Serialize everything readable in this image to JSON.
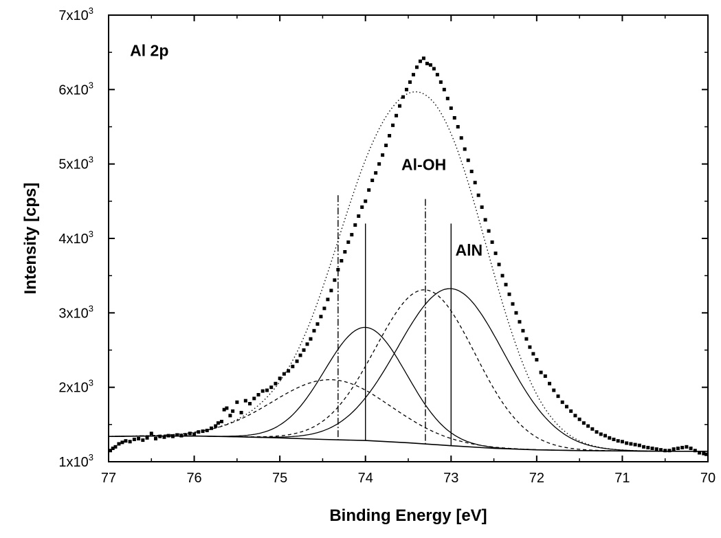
{
  "chart_data": {
    "type": "scatter",
    "title": "",
    "xlabel": "Binding Energy [eV]",
    "ylabel": "Intensity [cps]",
    "x_reversed": true,
    "xlim": [
      77,
      70
    ],
    "ylim": [
      1000,
      7000
    ],
    "grid": false,
    "x_ticks": [
      {
        "value": 77,
        "label": "77"
      },
      {
        "value": 76,
        "label": "76"
      },
      {
        "value": 75,
        "label": "75"
      },
      {
        "value": 74,
        "label": "74"
      },
      {
        "value": 73,
        "label": "73"
      },
      {
        "value": 72,
        "label": "72"
      },
      {
        "value": 71,
        "label": "71"
      },
      {
        "value": 70,
        "label": "70"
      }
    ],
    "y_ticks": [
      {
        "value": 1000,
        "mant": "1x10",
        "exp": "3"
      },
      {
        "value": 2000,
        "mant": "2x10",
        "exp": "3"
      },
      {
        "value": 3000,
        "mant": "3x10",
        "exp": "3"
      },
      {
        "value": 4000,
        "mant": "4x10",
        "exp": "3"
      },
      {
        "value": 5000,
        "mant": "5x10",
        "exp": "3"
      },
      {
        "value": 6000,
        "mant": "6x10",
        "exp": "3"
      },
      {
        "value": 7000,
        "mant": "7x10",
        "exp": "3"
      }
    ],
    "annotations": [
      {
        "text": "Al 2p",
        "x": 76.75,
        "y": 6450
      },
      {
        "text": "Al-OH",
        "x": 73.58,
        "y": 4920
      },
      {
        "text": "AlN",
        "x": 72.95,
        "y": 3770
      }
    ],
    "reference_lines": [
      {
        "x": 74.32,
        "y_top": 4580,
        "style": "dashdot"
      },
      {
        "x": 74.0,
        "y_top": 4200,
        "style": "solid"
      },
      {
        "x": 73.3,
        "y_top": 4530,
        "style": "dashdot"
      },
      {
        "x": 73.0,
        "y_top": 4200,
        "style": "solid"
      }
    ],
    "background_points": [
      [
        77.0,
        1340
      ],
      [
        76.5,
        1345
      ],
      [
        76.0,
        1345
      ],
      [
        75.5,
        1335
      ],
      [
        75.0,
        1320
      ],
      [
        74.5,
        1300
      ],
      [
        74.0,
        1285
      ],
      [
        73.5,
        1255
      ],
      [
        73.0,
        1215
      ],
      [
        72.5,
        1180
      ],
      [
        72.0,
        1160
      ],
      [
        71.5,
        1150
      ],
      [
        71.0,
        1145
      ],
      [
        70.5,
        1140
      ],
      [
        70.0,
        1140
      ]
    ],
    "components": [
      {
        "center": 74.0,
        "amplitude": 1520,
        "sigma": 0.48,
        "style": "solid"
      },
      {
        "center": 73.0,
        "amplitude": 2110,
        "sigma": 0.62,
        "style": "solid"
      },
      {
        "center": 74.4,
        "amplitude": 805,
        "sigma": 0.68,
        "style": "dashed"
      },
      {
        "center": 73.3,
        "amplitude": 2070,
        "sigma": 0.58,
        "style": "dashed"
      }
    ],
    "data_points": [
      [
        76.98,
        1150
      ],
      [
        76.95,
        1180
      ],
      [
        76.92,
        1200
      ],
      [
        76.88,
        1240
      ],
      [
        76.84,
        1260
      ],
      [
        76.8,
        1280
      ],
      [
        76.75,
        1270
      ],
      [
        76.7,
        1300
      ],
      [
        76.65,
        1310
      ],
      [
        76.6,
        1290
      ],
      [
        76.55,
        1320
      ],
      [
        76.5,
        1380
      ],
      [
        76.45,
        1310
      ],
      [
        76.4,
        1340
      ],
      [
        76.35,
        1330
      ],
      [
        76.3,
        1350
      ],
      [
        76.25,
        1340
      ],
      [
        76.2,
        1360
      ],
      [
        76.15,
        1350
      ],
      [
        76.1,
        1360
      ],
      [
        76.05,
        1380
      ],
      [
        76.0,
        1370
      ],
      [
        75.95,
        1400
      ],
      [
        75.9,
        1410
      ],
      [
        75.85,
        1420
      ],
      [
        75.8,
        1450
      ],
      [
        75.75,
        1480
      ],
      [
        75.72,
        1520
      ],
      [
        75.68,
        1540
      ],
      [
        75.65,
        1700
      ],
      [
        75.62,
        1720
      ],
      [
        75.58,
        1620
      ],
      [
        75.55,
        1680
      ],
      [
        75.5,
        1800
      ],
      [
        75.45,
        1660
      ],
      [
        75.4,
        1820
      ],
      [
        75.35,
        1780
      ],
      [
        75.3,
        1850
      ],
      [
        75.25,
        1900
      ],
      [
        75.2,
        1950
      ],
      [
        75.15,
        1960
      ],
      [
        75.1,
        2000
      ],
      [
        75.05,
        2050
      ],
      [
        75.0,
        2120
      ],
      [
        74.95,
        2180
      ],
      [
        74.9,
        2220
      ],
      [
        74.85,
        2280
      ],
      [
        74.8,
        2350
      ],
      [
        74.76,
        2430
      ],
      [
        74.72,
        2500
      ],
      [
        74.68,
        2580
      ],
      [
        74.64,
        2650
      ],
      [
        74.6,
        2760
      ],
      [
        74.56,
        2850
      ],
      [
        74.52,
        2950
      ],
      [
        74.48,
        3060
      ],
      [
        74.44,
        3180
      ],
      [
        74.4,
        3300
      ],
      [
        74.36,
        3440
      ],
      [
        74.32,
        3580
      ],
      [
        74.28,
        3700
      ],
      [
        74.24,
        3820
      ],
      [
        74.2,
        3950
      ],
      [
        74.16,
        4050
      ],
      [
        74.12,
        4180
      ],
      [
        74.08,
        4300
      ],
      [
        74.04,
        4420
      ],
      [
        74.0,
        4500
      ],
      [
        73.96,
        4650
      ],
      [
        73.92,
        4780
      ],
      [
        73.88,
        4880
      ],
      [
        73.84,
        5000
      ],
      [
        73.8,
        5120
      ],
      [
        73.76,
        5250
      ],
      [
        73.72,
        5380
      ],
      [
        73.68,
        5520
      ],
      [
        73.64,
        5650
      ],
      [
        73.6,
        5780
      ],
      [
        73.56,
        5900
      ],
      [
        73.52,
        6000
      ],
      [
        73.48,
        6100
      ],
      [
        73.44,
        6200
      ],
      [
        73.4,
        6300
      ],
      [
        73.36,
        6380
      ],
      [
        73.32,
        6420
      ],
      [
        73.28,
        6350
      ],
      [
        73.24,
        6330
      ],
      [
        73.2,
        6280
      ],
      [
        73.16,
        6200
      ],
      [
        73.12,
        6100
      ],
      [
        73.08,
        6000
      ],
      [
        73.04,
        5880
      ],
      [
        73.0,
        5750
      ],
      [
        72.96,
        5620
      ],
      [
        72.92,
        5500
      ],
      [
        72.88,
        5350
      ],
      [
        72.84,
        5200
      ],
      [
        72.8,
        5050
      ],
      [
        72.76,
        4900
      ],
      [
        72.72,
        4750
      ],
      [
        72.68,
        4580
      ],
      [
        72.64,
        4420
      ],
      [
        72.6,
        4250
      ],
      [
        72.56,
        4100
      ],
      [
        72.52,
        3950
      ],
      [
        72.48,
        3800
      ],
      [
        72.44,
        3650
      ],
      [
        72.4,
        3500
      ],
      [
        72.36,
        3380
      ],
      [
        72.32,
        3250
      ],
      [
        72.28,
        3120
      ],
      [
        72.24,
        3000
      ],
      [
        72.2,
        2880
      ],
      [
        72.16,
        2760
      ],
      [
        72.12,
        2650
      ],
      [
        72.08,
        2540
      ],
      [
        72.04,
        2450
      ],
      [
        72.0,
        2370
      ],
      [
        71.95,
        2200
      ],
      [
        71.9,
        2150
      ],
      [
        71.85,
        2050
      ],
      [
        71.8,
        1960
      ],
      [
        71.75,
        1880
      ],
      [
        71.7,
        1800
      ],
      [
        71.65,
        1740
      ],
      [
        71.6,
        1680
      ],
      [
        71.55,
        1620
      ],
      [
        71.5,
        1570
      ],
      [
        71.45,
        1520
      ],
      [
        71.4,
        1480
      ],
      [
        71.35,
        1440
      ],
      [
        71.3,
        1400
      ],
      [
        71.25,
        1370
      ],
      [
        71.2,
        1350
      ],
      [
        71.15,
        1320
      ],
      [
        71.1,
        1300
      ],
      [
        71.05,
        1280
      ],
      [
        71.0,
        1270
      ],
      [
        70.95,
        1250
      ],
      [
        70.9,
        1240
      ],
      [
        70.85,
        1230
      ],
      [
        70.8,
        1220
      ],
      [
        70.75,
        1200
      ],
      [
        70.7,
        1190
      ],
      [
        70.65,
        1180
      ],
      [
        70.6,
        1170
      ],
      [
        70.55,
        1160
      ],
      [
        70.5,
        1150
      ],
      [
        70.45,
        1150
      ],
      [
        70.4,
        1170
      ],
      [
        70.35,
        1180
      ],
      [
        70.3,
        1190
      ],
      [
        70.25,
        1200
      ],
      [
        70.2,
        1180
      ],
      [
        70.15,
        1150
      ],
      [
        70.1,
        1120
      ],
      [
        70.05,
        1110
      ],
      [
        70.02,
        1100
      ]
    ]
  }
}
